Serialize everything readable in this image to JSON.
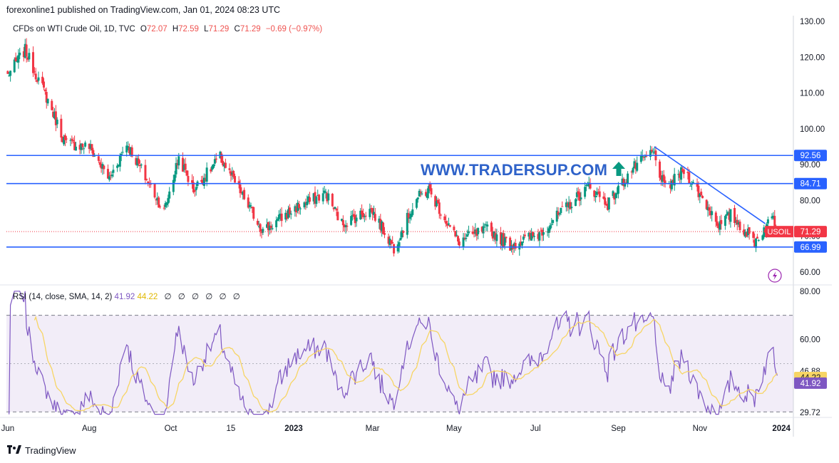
{
  "header": {
    "published": "forexonline1 published on TradingView.com, Jan 01, 2024 08:23 UTC"
  },
  "legend": {
    "symbol": "CFDs on WTI Crude Oil, 1D, TVC",
    "o_label": "O",
    "o": "72.07",
    "h_label": "H",
    "h": "72.59",
    "l_label": "L",
    "l": "71.29",
    "c_label": "C",
    "c": "71.29",
    "change": "−0.69 (−0.97%)"
  },
  "watermark": "WWW.TRADERSUP.COM",
  "rsi_legend": {
    "label": "RSI (14, close, SMA, 14, 2)",
    "rsi": "41.92",
    "sma": "44.22",
    "hidden": [
      "∅",
      "∅",
      "∅",
      "∅",
      "∅",
      "∅"
    ]
  },
  "footer": {
    "brand": "TradingView"
  },
  "colors": {
    "up": "#089981",
    "down": "#f23645",
    "level": "#2962ff",
    "rsi": "#7e57c2",
    "rsi_sma": "#f7d564",
    "band": "#ede7f6"
  },
  "chart_data": [
    {
      "type": "candlestick",
      "instrument": "USOIL",
      "price_axis": {
        "ticks": [
          130,
          120,
          110,
          100,
          90,
          80,
          70,
          60
        ],
        "tick_labels": [
          "130.00",
          "120.00",
          "110.00",
          "100.00",
          "90.00",
          "80.00",
          "70.00",
          "60.00"
        ],
        "range": [
          57,
          131
        ]
      },
      "time_axis": {
        "labels": [
          "Jun",
          "Aug",
          "Oct",
          "15",
          "2023",
          "Mar",
          "May",
          "Jul",
          "Sep",
          "Nov",
          "2024"
        ]
      },
      "last_price": 71.29,
      "last_price_label": "71.29",
      "symbol_tag": "USOIL",
      "horizontal_levels": [
        {
          "value": 92.56,
          "label": "92.56"
        },
        {
          "value": 84.71,
          "label": "84.71"
        },
        {
          "value": 66.99,
          "label": "66.99"
        }
      ],
      "trendline": {
        "from": {
          "date": "2023-09-28",
          "price": 95.0
        },
        "to": {
          "date": "2023-12-20",
          "price": 73.5
        }
      },
      "waypoints": [
        {
          "date": "2022-06-01",
          "price": 115
        },
        {
          "date": "2022-06-14",
          "price": 122
        },
        {
          "date": "2022-07-01",
          "price": 108
        },
        {
          "date": "2022-07-14",
          "price": 96
        },
        {
          "date": "2022-08-01",
          "price": 95
        },
        {
          "date": "2022-08-16",
          "price": 86
        },
        {
          "date": "2022-08-29",
          "price": 96
        },
        {
          "date": "2022-09-26",
          "price": 77
        },
        {
          "date": "2022-10-07",
          "price": 92
        },
        {
          "date": "2022-10-18",
          "price": 83
        },
        {
          "date": "2022-11-07",
          "price": 92
        },
        {
          "date": "2022-12-09",
          "price": 71.5
        },
        {
          "date": "2023-01-03",
          "price": 78
        },
        {
          "date": "2023-01-25",
          "price": 82
        },
        {
          "date": "2023-02-06",
          "price": 73.5
        },
        {
          "date": "2023-02-28",
          "price": 77.5
        },
        {
          "date": "2023-03-17",
          "price": 66.8
        },
        {
          "date": "2023-04-03",
          "price": 80.5
        },
        {
          "date": "2023-04-12",
          "price": 83
        },
        {
          "date": "2023-05-04",
          "price": 68.5
        },
        {
          "date": "2023-05-26",
          "price": 72
        },
        {
          "date": "2023-06-12",
          "price": 67.5
        },
        {
          "date": "2023-07-03",
          "price": 70.5
        },
        {
          "date": "2023-08-10",
          "price": 84
        },
        {
          "date": "2023-08-24",
          "price": 79
        },
        {
          "date": "2023-09-12",
          "price": 89
        },
        {
          "date": "2023-09-27",
          "price": 93.5
        },
        {
          "date": "2023-10-06",
          "price": 83
        },
        {
          "date": "2023-10-20",
          "price": 88.5
        },
        {
          "date": "2023-11-16",
          "price": 73
        },
        {
          "date": "2023-11-24",
          "price": 76
        },
        {
          "date": "2023-12-12",
          "price": 68.5
        },
        {
          "date": "2023-12-26",
          "price": 75.5
        },
        {
          "date": "2023-12-29",
          "price": 71.29
        }
      ]
    },
    {
      "type": "line",
      "indicator": "RSI",
      "axis": {
        "ticks": [
          80,
          60
        ],
        "tick_labels": [
          "80.00",
          "60.00"
        ],
        "range": [
          28,
          82
        ]
      },
      "bands": {
        "upper": 70,
        "middle": 50,
        "lower": 30
      },
      "value_labels": [
        {
          "value": 46.88,
          "label": "46.88"
        },
        {
          "value": 44.22,
          "label": "44.22"
        },
        {
          "value": 41.92,
          "label": "41.92"
        },
        {
          "value": 29.72,
          "label": "29.72"
        }
      ],
      "series": [
        {
          "name": "RSI"
        },
        {
          "name": "SMA"
        }
      ]
    }
  ]
}
